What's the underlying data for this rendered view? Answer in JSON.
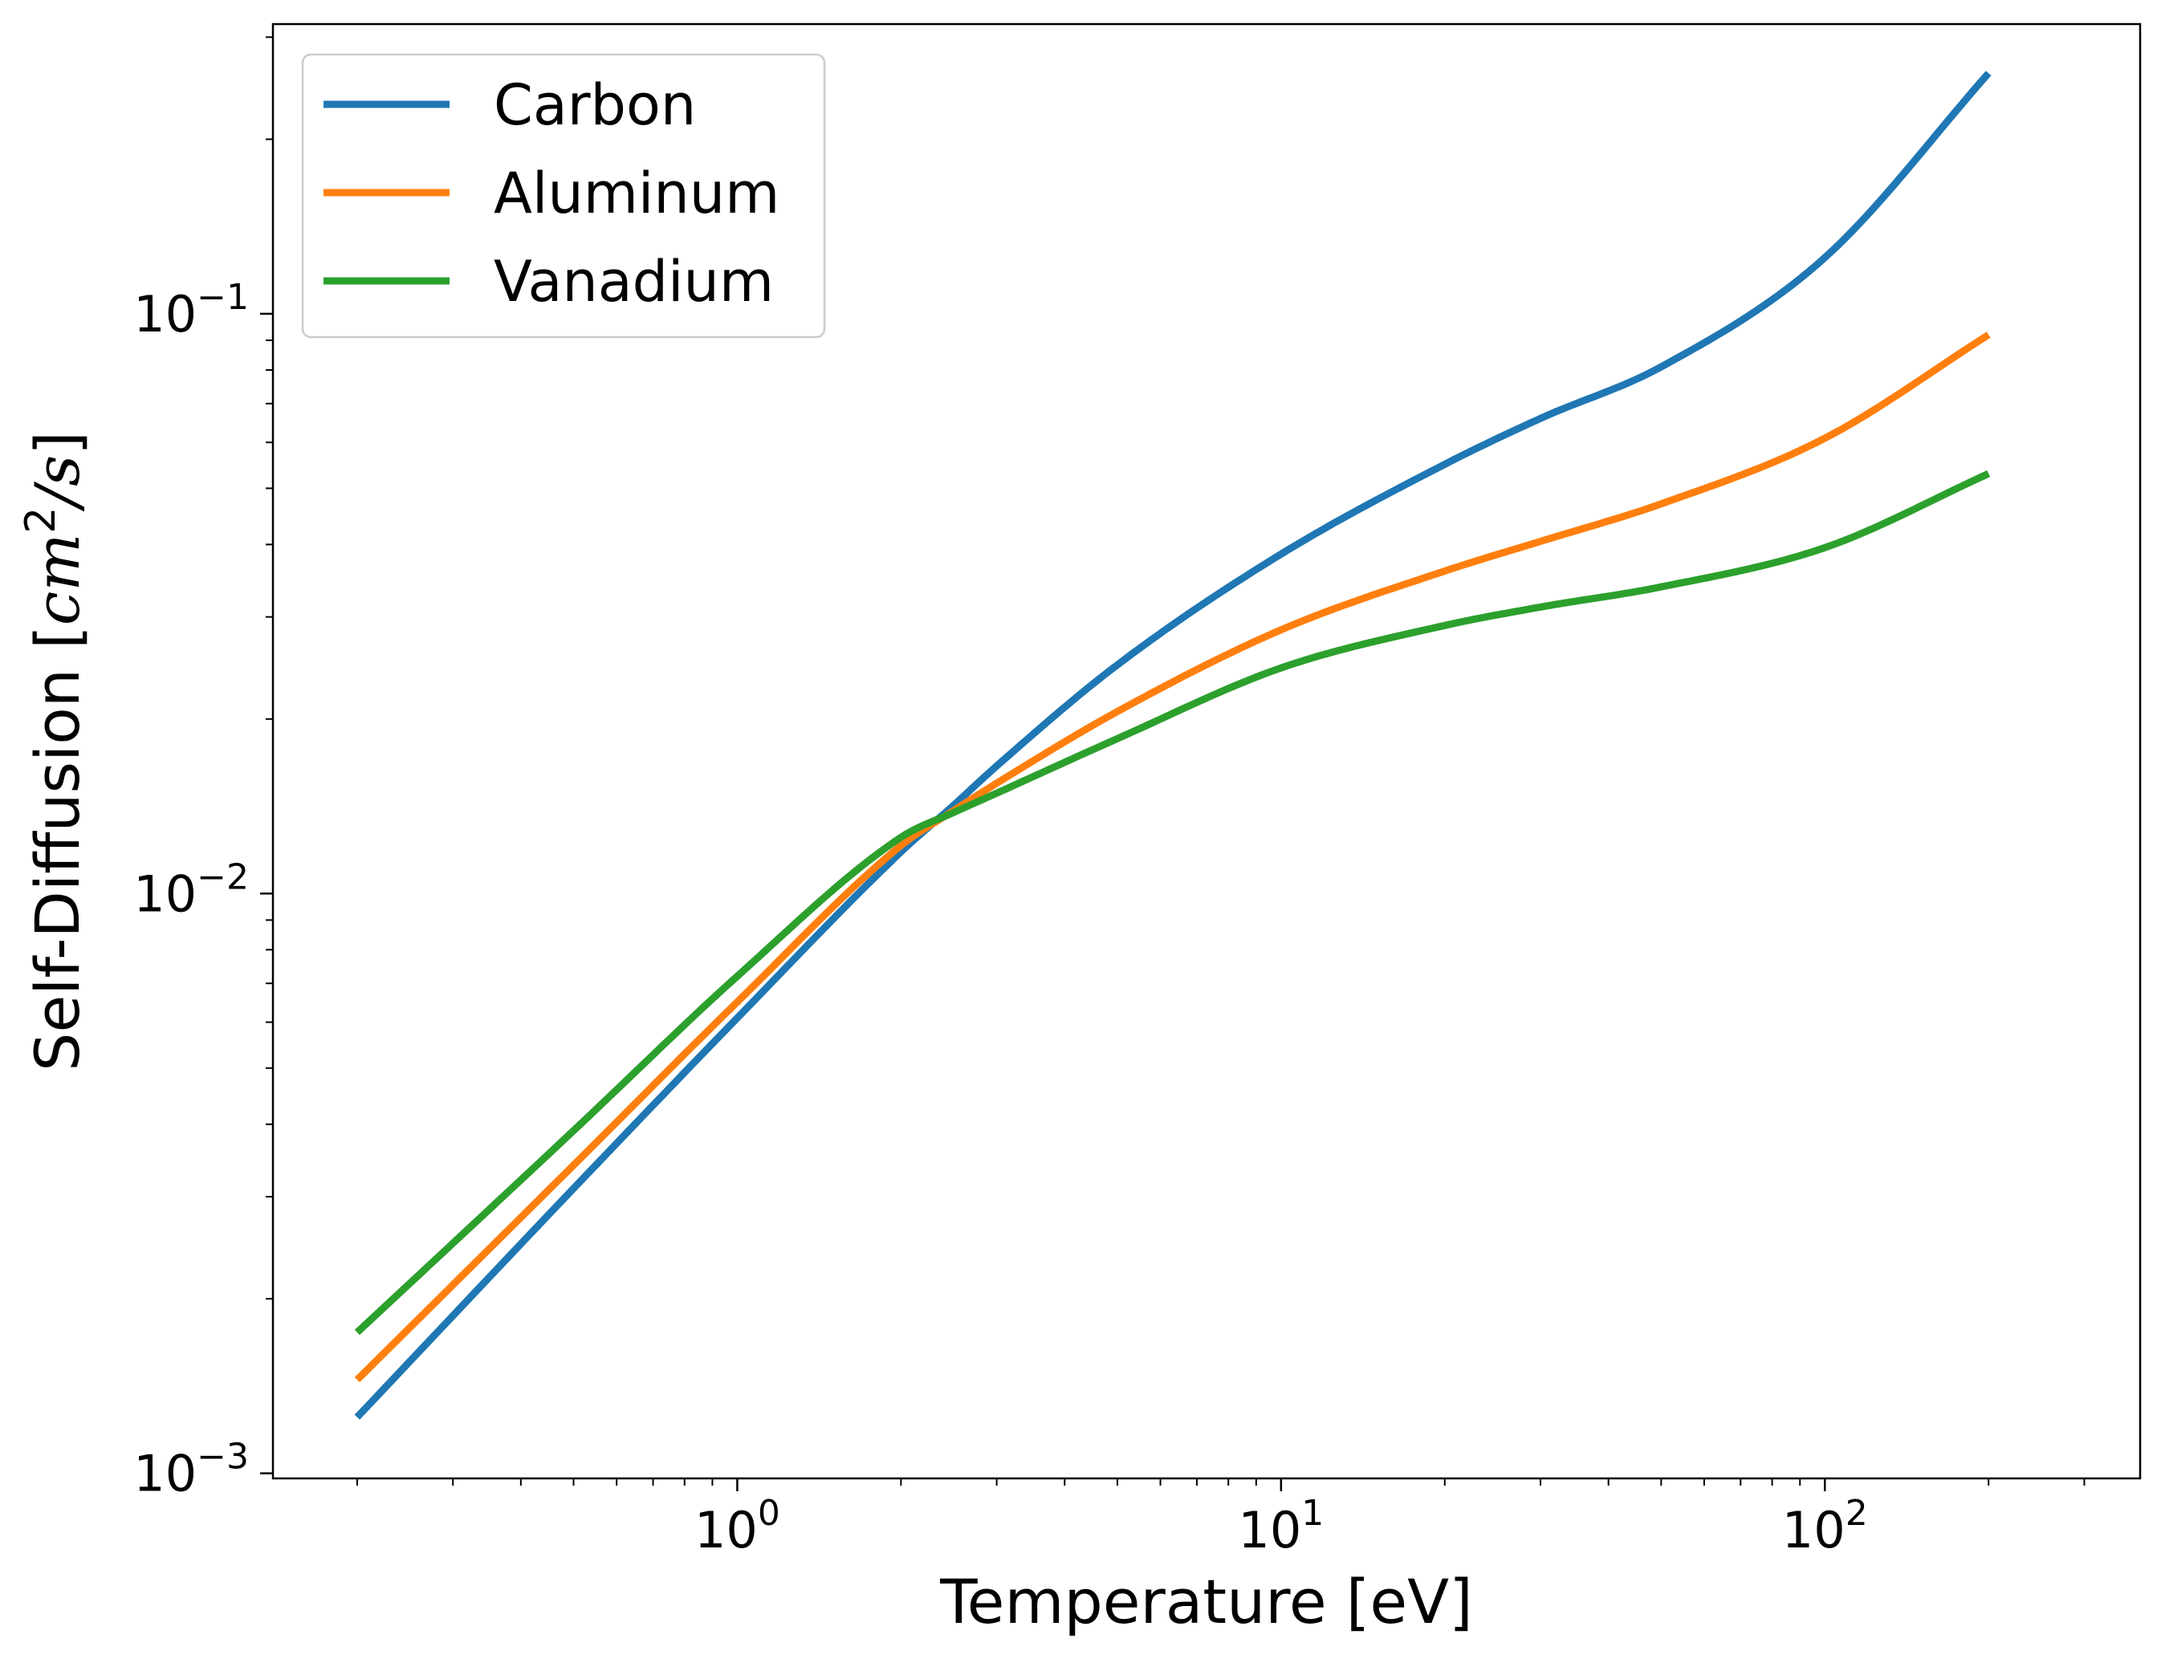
{
  "chart_data": {
    "type": "line",
    "xlabel": "Temperature [eV]",
    "ylabel_prefix": "Self-Diffusion [",
    "ylabel_unit": "cm",
    "ylabel_sup": "2",
    "ylabel_unit2": "/s",
    "ylabel_suffix": "]",
    "xscale": "log",
    "yscale": "log",
    "xlim": [
      0.14,
      380
    ],
    "ylim": [
      0.00098,
      0.316
    ],
    "x_major_ticks": [
      {
        "value": 1,
        "base": "10",
        "exp": "0"
      },
      {
        "value": 10,
        "base": "10",
        "exp": "1"
      },
      {
        "value": 100,
        "base": "10",
        "exp": "2"
      }
    ],
    "y_major_ticks": [
      {
        "value": 0.001,
        "base": "10",
        "exp": "−3"
      },
      {
        "value": 0.01,
        "base": "10",
        "exp": "−2"
      },
      {
        "value": 0.1,
        "base": "10",
        "exp": "−1"
      }
    ],
    "grid": false,
    "legend_position": "top-left",
    "series": [
      {
        "name": "Carbon",
        "color": "#1f77b4",
        "x": [
          0.2,
          0.5,
          1,
          2,
          2.5,
          3,
          5,
          10,
          20,
          30,
          50,
          100,
          200
        ],
        "y": [
          0.00125,
          0.0031,
          0.0061,
          0.0118,
          0.0142,
          0.0166,
          0.0248,
          0.0385,
          0.055,
          0.066,
          0.081,
          0.125,
          0.26
        ]
      },
      {
        "name": "Aluminum",
        "color": "#ff7f0e",
        "x": [
          0.2,
          0.5,
          1,
          2,
          2.5,
          3,
          5,
          10,
          20,
          30,
          50,
          100,
          200
        ],
        "y": [
          0.00145,
          0.0034,
          0.0065,
          0.0121,
          0.0139,
          0.0155,
          0.0206,
          0.0285,
          0.036,
          0.0405,
          0.047,
          0.061,
          0.092
        ]
      },
      {
        "name": "Vanadium",
        "color": "#2ca02c",
        "x": [
          0.2,
          0.5,
          1,
          2,
          2.5,
          3,
          5,
          10,
          20,
          30,
          50,
          100,
          200
        ],
        "y": [
          0.00175,
          0.0039,
          0.0072,
          0.0125,
          0.0138,
          0.0149,
          0.0185,
          0.0245,
          0.029,
          0.0312,
          0.0338,
          0.0395,
          0.053
        ]
      }
    ]
  }
}
